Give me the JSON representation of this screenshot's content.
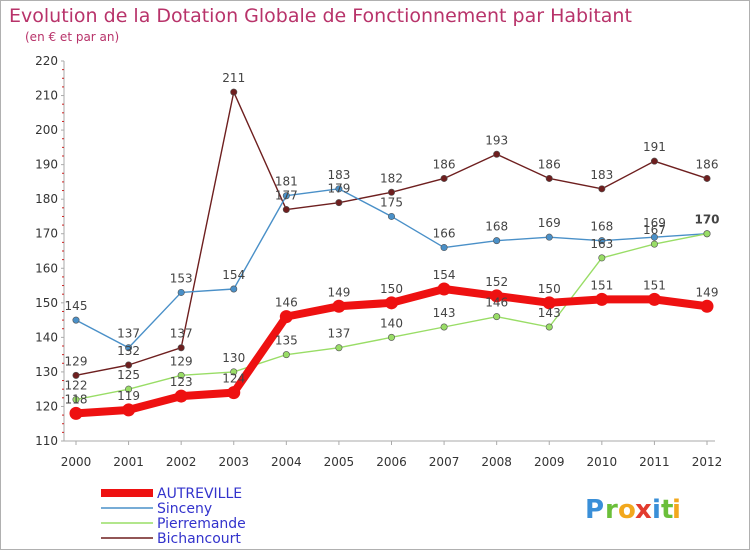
{
  "colors": {
    "title": "#b8336a",
    "axis": "#aaaaaa",
    "axis_ticks": "#cc2222",
    "grid": "#dddddd",
    "legend_text": "#3333cc",
    "background": "#ffffff"
  },
  "logo": {
    "letters": [
      "P",
      "r",
      "o",
      "x",
      "i",
      "t",
      "i"
    ],
    "colors": [
      "#3a8fd8",
      "#6bbf3a",
      "#f2a81d",
      "#e23b2e",
      "#3a8fd8",
      "#6bbf3a",
      "#f2a81d"
    ]
  },
  "chart_data": {
    "type": "line",
    "title": "Evolution de la Dotation Globale de Fonctionnement par Habitant",
    "subtitle": "(en € et par an)",
    "xlabel": "",
    "ylabel": "",
    "ylim": [
      110,
      220
    ],
    "yticks": [
      110,
      120,
      130,
      140,
      150,
      160,
      170,
      180,
      190,
      200,
      210,
      220
    ],
    "grid": false,
    "legend_position": "bottom-left",
    "categories": [
      "2000",
      "2001",
      "2002",
      "2003",
      "2004",
      "2005",
      "2006",
      "2007",
      "2008",
      "2009",
      "2010",
      "2011",
      "2012"
    ],
    "series": [
      {
        "name": "Bichancourt",
        "color": "#6e1f1f",
        "weight": "thin",
        "values": [
          129,
          132,
          137,
          211,
          177,
          179,
          182,
          186,
          193,
          186,
          183,
          191,
          186
        ],
        "labels": [
          "129",
          "132",
          "137",
          "211",
          "177",
          "179",
          "182",
          "186",
          "193",
          "186",
          "183",
          "191",
          "186"
        ]
      },
      {
        "name": "Sinceny",
        "color": "#4a90c8",
        "weight": "thin",
        "values": [
          145,
          137,
          153,
          154,
          181,
          183,
          175,
          166,
          168,
          169,
          168,
          169,
          170
        ],
        "labels": [
          "145",
          "137",
          "153",
          "154",
          "181",
          "183",
          "175",
          "166",
          "168",
          "169",
          "168",
          "169",
          "170"
        ]
      },
      {
        "name": "Pierremande",
        "color": "#99dd66",
        "weight": "thin",
        "values": [
          122,
          125,
          129,
          130,
          135,
          137,
          140,
          143,
          146,
          143,
          163,
          167,
          170
        ],
        "labels": [
          "122",
          "125",
          "129",
          "130",
          "135",
          "137",
          "140",
          "143",
          "146",
          "143",
          "163",
          "167",
          ""
        ]
      },
      {
        "name": "AUTREVILLE",
        "color": "#ee1111",
        "weight": "bold",
        "values": [
          118,
          119,
          123,
          124,
          146,
          149,
          150,
          154,
          152,
          150,
          151,
          151,
          149
        ],
        "labels": [
          "118",
          "119",
          "123",
          "124",
          "146",
          "149",
          "150",
          "154",
          "152",
          "150",
          "151",
          "151",
          "149"
        ]
      }
    ],
    "legend_order": [
      "AUTREVILLE",
      "Sinceny",
      "Pierremande",
      "Bichancourt"
    ]
  }
}
